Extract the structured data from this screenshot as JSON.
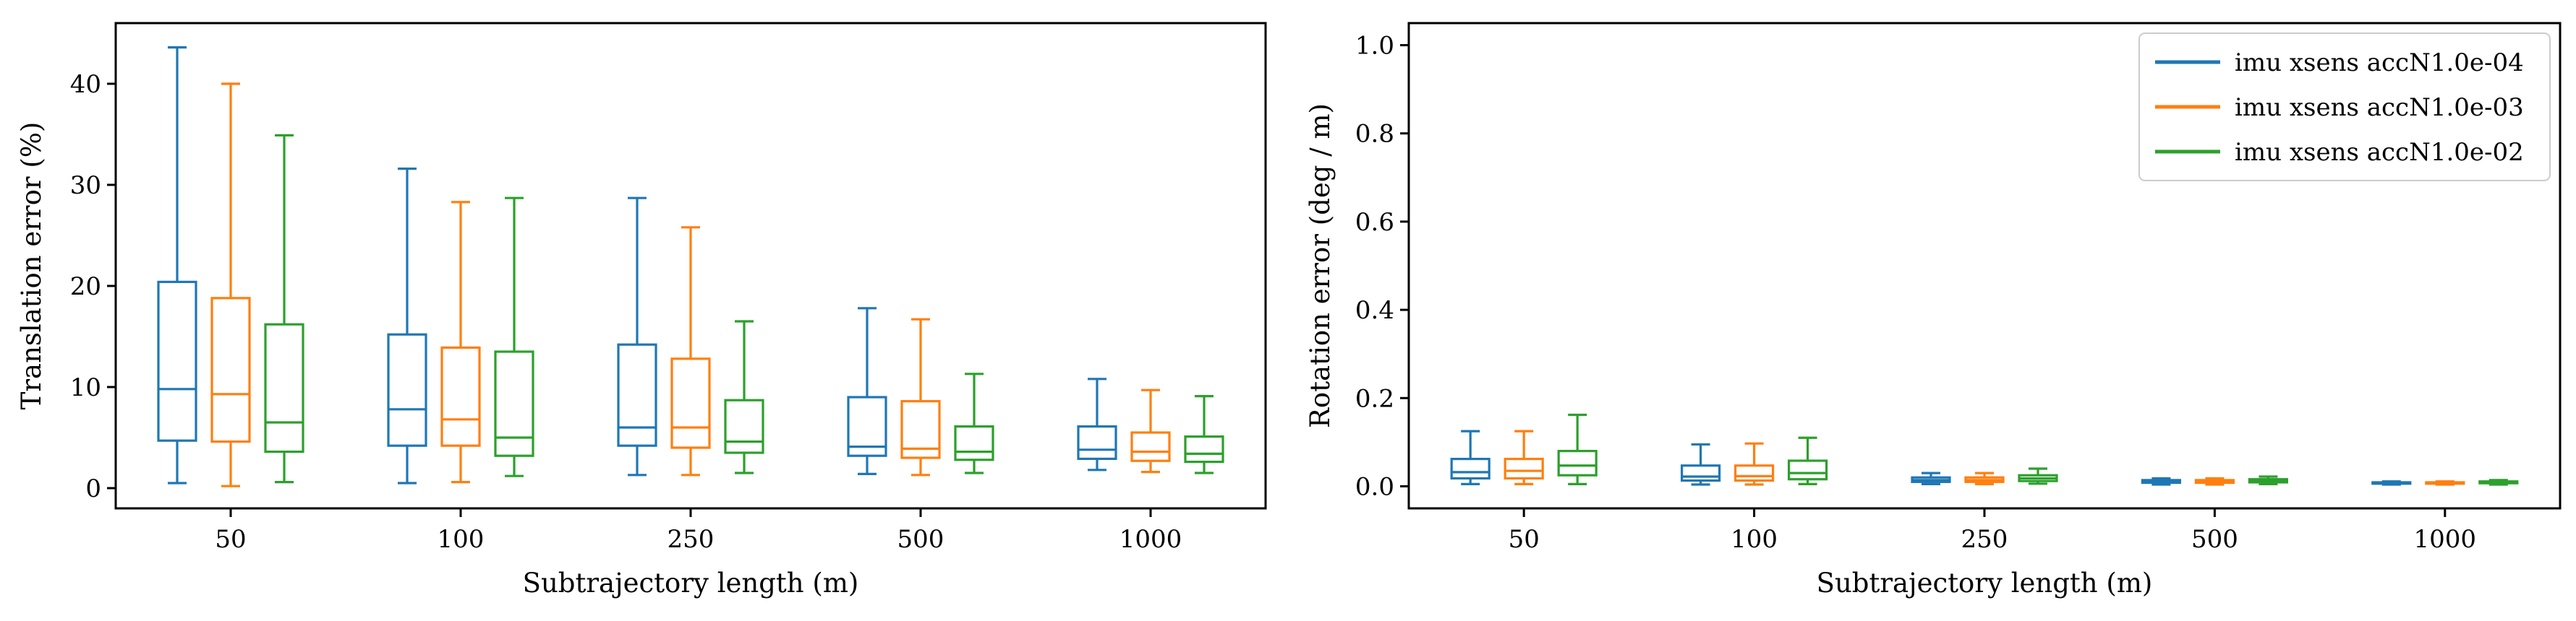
{
  "colors": {
    "series": [
      "#1f77b4",
      "#ff7f0e",
      "#2ca02c"
    ],
    "axis": "#000000",
    "background": "#ffffff"
  },
  "chart_data": [
    {
      "type": "box",
      "xlabel": "Subtrajectory length (m)",
      "ylabel": "Translation error (%)",
      "ylim": [
        -2,
        46
      ],
      "yticks": [
        0,
        10,
        20,
        30,
        40
      ],
      "categories": [
        "50",
        "100",
        "250",
        "500",
        "1000"
      ],
      "grid": false,
      "legend": null,
      "series": [
        {
          "color": "#1f77b4",
          "boxes": [
            {
              "whislo": 0.5,
              "q1": 4.7,
              "med": 9.8,
              "q3": 20.4,
              "whishi": 43.6
            },
            {
              "whislo": 0.5,
              "q1": 4.2,
              "med": 7.8,
              "q3": 15.2,
              "whishi": 31.6
            },
            {
              "whislo": 1.3,
              "q1": 4.2,
              "med": 6.0,
              "q3": 14.2,
              "whishi": 28.7
            },
            {
              "whislo": 1.4,
              "q1": 3.2,
              "med": 4.1,
              "q3": 9.0,
              "whishi": 17.8
            },
            {
              "whislo": 1.8,
              "q1": 2.9,
              "med": 3.8,
              "q3": 6.1,
              "whishi": 10.8
            }
          ]
        },
        {
          "color": "#ff7f0e",
          "boxes": [
            {
              "whislo": 0.2,
              "q1": 4.6,
              "med": 9.3,
              "q3": 18.8,
              "whishi": 40.0
            },
            {
              "whislo": 0.6,
              "q1": 4.2,
              "med": 6.8,
              "q3": 13.9,
              "whishi": 28.3
            },
            {
              "whislo": 1.3,
              "q1": 4.0,
              "med": 6.0,
              "q3": 12.8,
              "whishi": 25.8
            },
            {
              "whislo": 1.3,
              "q1": 3.0,
              "med": 3.9,
              "q3": 8.6,
              "whishi": 16.7
            },
            {
              "whislo": 1.6,
              "q1": 2.7,
              "med": 3.6,
              "q3": 5.5,
              "whishi": 9.7
            }
          ]
        },
        {
          "color": "#2ca02c",
          "boxes": [
            {
              "whislo": 0.6,
              "q1": 3.6,
              "med": 6.5,
              "q3": 16.2,
              "whishi": 34.9
            },
            {
              "whislo": 1.2,
              "q1": 3.2,
              "med": 5.0,
              "q3": 13.5,
              "whishi": 28.7
            },
            {
              "whislo": 1.5,
              "q1": 3.5,
              "med": 4.6,
              "q3": 8.7,
              "whishi": 16.5
            },
            {
              "whislo": 1.5,
              "q1": 2.8,
              "med": 3.6,
              "q3": 6.1,
              "whishi": 11.3
            },
            {
              "whislo": 1.5,
              "q1": 2.6,
              "med": 3.4,
              "q3": 5.1,
              "whishi": 9.1
            }
          ]
        }
      ]
    },
    {
      "type": "box",
      "xlabel": "Subtrajectory length (m)",
      "ylabel": "Rotation error (deg / m)",
      "ylim": [
        -0.05,
        1.05
      ],
      "yticks": [
        0.0,
        0.2,
        0.4,
        0.6,
        0.8,
        1.0
      ],
      "ytick_labels": [
        "0.0",
        "0.2",
        "0.4",
        "0.6",
        "0.8",
        "1.0"
      ],
      "categories": [
        "50",
        "100",
        "250",
        "500",
        "1000"
      ],
      "grid": false,
      "legend": "top-right",
      "series": [
        {
          "name": "imu xsens accN1.0e-04",
          "color": "#1f77b4",
          "boxes": [
            {
              "whislo": 0.005,
              "q1": 0.018,
              "med": 0.032,
              "q3": 0.062,
              "whishi": 0.125
            },
            {
              "whislo": 0.004,
              "q1": 0.013,
              "med": 0.022,
              "q3": 0.047,
              "whishi": 0.095
            },
            {
              "whislo": 0.005,
              "q1": 0.01,
              "med": 0.014,
              "q3": 0.02,
              "whishi": 0.03
            },
            {
              "whislo": 0.004,
              "q1": 0.008,
              "med": 0.01,
              "q3": 0.014,
              "whishi": 0.018
            },
            {
              "whislo": 0.004,
              "q1": 0.006,
              "med": 0.007,
              "q3": 0.009,
              "whishi": 0.011
            }
          ]
        },
        {
          "name": "imu xsens accN1.0e-03",
          "color": "#ff7f0e",
          "boxes": [
            {
              "whislo": 0.005,
              "q1": 0.018,
              "med": 0.035,
              "q3": 0.062,
              "whishi": 0.125
            },
            {
              "whislo": 0.004,
              "q1": 0.013,
              "med": 0.023,
              "q3": 0.047,
              "whishi": 0.097
            },
            {
              "whislo": 0.005,
              "q1": 0.01,
              "med": 0.014,
              "q3": 0.02,
              "whishi": 0.03
            },
            {
              "whislo": 0.004,
              "q1": 0.008,
              "med": 0.01,
              "q3": 0.014,
              "whishi": 0.018
            },
            {
              "whislo": 0.004,
              "q1": 0.006,
              "med": 0.007,
              "q3": 0.009,
              "whishi": 0.011
            }
          ]
        },
        {
          "name": "imu xsens accN1.0e-02",
          "color": "#2ca02c",
          "boxes": [
            {
              "whislo": 0.005,
              "q1": 0.025,
              "med": 0.047,
              "q3": 0.08,
              "whishi": 0.162
            },
            {
              "whislo": 0.005,
              "q1": 0.016,
              "med": 0.03,
              "q3": 0.058,
              "whishi": 0.11
            },
            {
              "whislo": 0.006,
              "q1": 0.012,
              "med": 0.018,
              "q3": 0.025,
              "whishi": 0.04
            },
            {
              "whislo": 0.005,
              "q1": 0.009,
              "med": 0.012,
              "q3": 0.016,
              "whishi": 0.022
            },
            {
              "whislo": 0.004,
              "q1": 0.007,
              "med": 0.009,
              "q3": 0.011,
              "whishi": 0.014
            }
          ]
        }
      ]
    }
  ]
}
